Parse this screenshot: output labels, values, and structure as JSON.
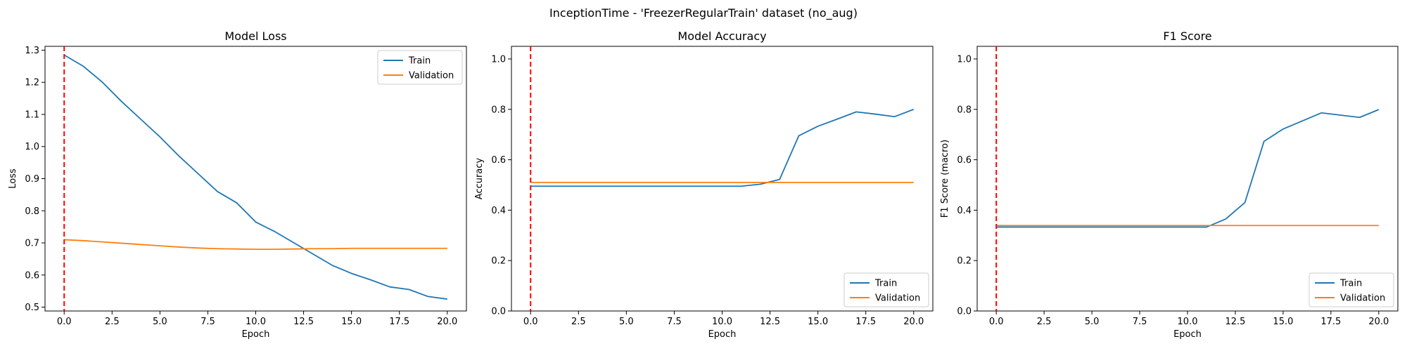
{
  "figure": {
    "title": "InceptionTime - 'FreezerRegularTrain' dataset (no_aug)"
  },
  "colors": {
    "train": "#1f77b4",
    "validation": "#ff7f0e",
    "marker_line": "#ff0000"
  },
  "chart_data": [
    {
      "type": "line",
      "title": "Model Loss",
      "xlabel": "Epoch",
      "ylabel": "Loss",
      "xlim": [
        -1,
        21
      ],
      "ylim": [
        0.488,
        1.312
      ],
      "xticks": [
        0.0,
        2.5,
        5.0,
        7.5,
        10.0,
        12.5,
        15.0,
        17.5,
        20.0
      ],
      "xtick_labels": [
        "0.0",
        "2.5",
        "5.0",
        "7.5",
        "10.0",
        "12.5",
        "15.0",
        "17.5",
        "20.0"
      ],
      "yticks": [
        0.5,
        0.6,
        0.7,
        0.8,
        0.9,
        1.0,
        1.1,
        1.2,
        1.3
      ],
      "ytick_labels": [
        "0.5",
        "0.6",
        "0.7",
        "0.8",
        "0.9",
        "1.0",
        "1.1",
        "1.2",
        "1.3"
      ],
      "vline_x": 0,
      "legend_position": "upper-right",
      "x": [
        0,
        1,
        2,
        3,
        4,
        5,
        6,
        7,
        8,
        9,
        10,
        11,
        12,
        13,
        14,
        15,
        16,
        17,
        18,
        19,
        20
      ],
      "series": [
        {
          "name": "Train",
          "values": [
            1.285,
            1.25,
            1.2,
            1.14,
            1.085,
            1.03,
            0.97,
            0.915,
            0.86,
            0.825,
            0.765,
            0.735,
            0.7,
            0.665,
            0.63,
            0.605,
            0.585,
            0.563,
            0.555,
            0.533,
            0.525
          ]
        },
        {
          "name": "Validation",
          "values": [
            0.71,
            0.707,
            0.703,
            0.699,
            0.695,
            0.691,
            0.687,
            0.684,
            0.682,
            0.681,
            0.68,
            0.68,
            0.681,
            0.682,
            0.682,
            0.683,
            0.683,
            0.683,
            0.683,
            0.683,
            0.683
          ]
        }
      ]
    },
    {
      "type": "line",
      "title": "Model Accuracy",
      "xlabel": "Epoch",
      "ylabel": "Accuracy",
      "xlim": [
        -1,
        21
      ],
      "ylim": [
        0,
        1.05
      ],
      "xticks": [
        0.0,
        2.5,
        5.0,
        7.5,
        10.0,
        12.5,
        15.0,
        17.5,
        20.0
      ],
      "xtick_labels": [
        "0.0",
        "2.5",
        "5.0",
        "7.5",
        "10.0",
        "12.5",
        "15.0",
        "17.5",
        "20.0"
      ],
      "yticks": [
        0.0,
        0.2,
        0.4,
        0.6,
        0.8,
        1.0
      ],
      "ytick_labels": [
        "0.0",
        "0.2",
        "0.4",
        "0.6",
        "0.8",
        "1.0"
      ],
      "vline_x": 0,
      "legend_position": "lower-right",
      "x": [
        0,
        1,
        2,
        3,
        4,
        5,
        6,
        7,
        8,
        9,
        10,
        11,
        12,
        13,
        14,
        15,
        16,
        17,
        18,
        19,
        20
      ],
      "series": [
        {
          "name": "Train",
          "values": [
            0.495,
            0.495,
            0.495,
            0.495,
            0.495,
            0.495,
            0.495,
            0.495,
            0.495,
            0.495,
            0.495,
            0.495,
            0.503,
            0.522,
            0.695,
            0.733,
            0.761,
            0.79,
            0.781,
            0.771,
            0.8
          ]
        },
        {
          "name": "Validation",
          "values": [
            0.51,
            0.51,
            0.51,
            0.51,
            0.51,
            0.51,
            0.51,
            0.51,
            0.51,
            0.51,
            0.51,
            0.51,
            0.51,
            0.51,
            0.51,
            0.51,
            0.51,
            0.51,
            0.51,
            0.51,
            0.51
          ]
        }
      ]
    },
    {
      "type": "line",
      "title": "F1 Score",
      "xlabel": "Epoch",
      "ylabel": "F1 Score (macro)",
      "xlim": [
        -1,
        21
      ],
      "ylim": [
        0,
        1.05
      ],
      "xticks": [
        0.0,
        2.5,
        5.0,
        7.5,
        10.0,
        12.5,
        15.0,
        17.5,
        20.0
      ],
      "xtick_labels": [
        "0.0",
        "2.5",
        "5.0",
        "7.5",
        "10.0",
        "12.5",
        "15.0",
        "17.5",
        "20.0"
      ],
      "yticks": [
        0.0,
        0.2,
        0.4,
        0.6,
        0.8,
        1.0
      ],
      "ytick_labels": [
        "0.0",
        "0.2",
        "0.4",
        "0.6",
        "0.8",
        "1.0"
      ],
      "vline_x": 0,
      "legend_position": "lower-right",
      "x": [
        0,
        1,
        2,
        3,
        4,
        5,
        6,
        7,
        8,
        9,
        10,
        11,
        12,
        13,
        14,
        15,
        16,
        17,
        18,
        19,
        20
      ],
      "series": [
        {
          "name": "Train",
          "values": [
            0.333,
            0.333,
            0.333,
            0.333,
            0.333,
            0.333,
            0.333,
            0.333,
            0.333,
            0.333,
            0.333,
            0.333,
            0.365,
            0.43,
            0.673,
            0.722,
            0.754,
            0.786,
            0.777,
            0.768,
            0.799
          ]
        },
        {
          "name": "Validation",
          "values": [
            0.339,
            0.339,
            0.339,
            0.339,
            0.339,
            0.339,
            0.339,
            0.339,
            0.339,
            0.339,
            0.339,
            0.339,
            0.339,
            0.339,
            0.339,
            0.339,
            0.339,
            0.339,
            0.339,
            0.339,
            0.339
          ]
        }
      ]
    }
  ]
}
